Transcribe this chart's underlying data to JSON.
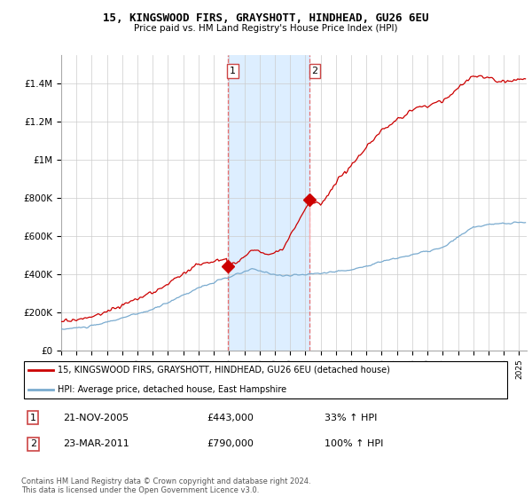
{
  "title_line1": "15, KINGSWOOD FIRS, GRAYSHOTT, HINDHEAD, GU26 6EU",
  "title_line2": "Price paid vs. HM Land Registry's House Price Index (HPI)",
  "legend_line1": "15, KINGSWOOD FIRS, GRAYSHOTT, HINDHEAD, GU26 6EU (detached house)",
  "legend_line2": "HPI: Average price, detached house, East Hampshire",
  "sale1_date": "21-NOV-2005",
  "sale1_price": 443000,
  "sale1_label": "33% ↑ HPI",
  "sale1_year": 2005.9,
  "sale2_date": "23-MAR-2011",
  "sale2_price": 790000,
  "sale2_label": "100% ↑ HPI",
  "sale2_year": 2011.25,
  "red_color": "#cc0000",
  "blue_color": "#7aabcf",
  "shade_color": "#ddeeff",
  "dashed_color": "#e87070",
  "footnote": "Contains HM Land Registry data © Crown copyright and database right 2024.\nThis data is licensed under the Open Government Licence v3.0.",
  "xmin": 1995,
  "xmax": 2025.5,
  "ymin": 0,
  "ymax": 1550000,
  "yticks": [
    0,
    200000,
    400000,
    600000,
    800000,
    1000000,
    1200000,
    1400000
  ],
  "ytick_labels": [
    "£0",
    "£200K",
    "£400K",
    "£600K",
    "£800K",
    "£1M",
    "£1.2M",
    "£1.4M"
  ]
}
